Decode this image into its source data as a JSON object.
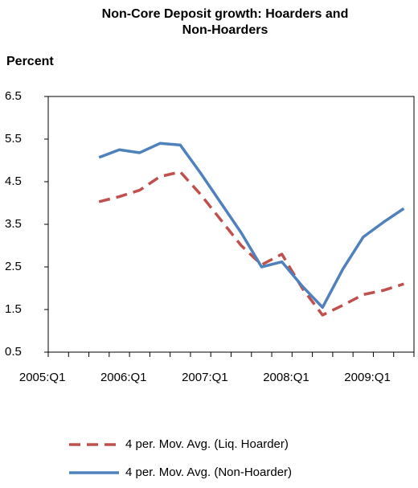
{
  "chart_data": {
    "type": "line",
    "title": "Non-Core Deposit growth: Hoarders and Non-Hoarders",
    "y_label": "Percent",
    "categories": [
      "2005:Q1",
      null,
      null,
      null,
      "2006:Q1",
      null,
      null,
      null,
      "2007:Q1",
      null,
      null,
      null,
      "2008:Q1",
      null,
      null,
      null,
      "2009:Q1",
      null
    ],
    "series": [
      {
        "name": "4 per. Mov. Avg. (Liq. Hoarder)",
        "color": "#c0504d",
        "dash": true,
        "values": [
          null,
          null,
          4.03,
          4.15,
          4.3,
          4.62,
          4.73,
          4.2,
          3.6,
          3.0,
          2.55,
          2.8,
          2.0,
          1.37,
          1.6,
          1.85,
          1.95,
          2.1
        ]
      },
      {
        "name": "4 per. Mov. Avg. (Non-Hoarder)",
        "color": "#4f81bd",
        "dash": false,
        "values": [
          null,
          null,
          5.07,
          5.25,
          5.18,
          5.4,
          5.36,
          4.7,
          4.0,
          3.3,
          2.5,
          2.62,
          2.05,
          1.55,
          2.45,
          3.2,
          3.55,
          3.87
        ]
      }
    ],
    "ylim": [
      0.5,
      6.5
    ],
    "yticks": [
      0.5,
      1.5,
      2.5,
      3.5,
      4.5,
      5.5,
      6.5
    ],
    "grid": false
  }
}
